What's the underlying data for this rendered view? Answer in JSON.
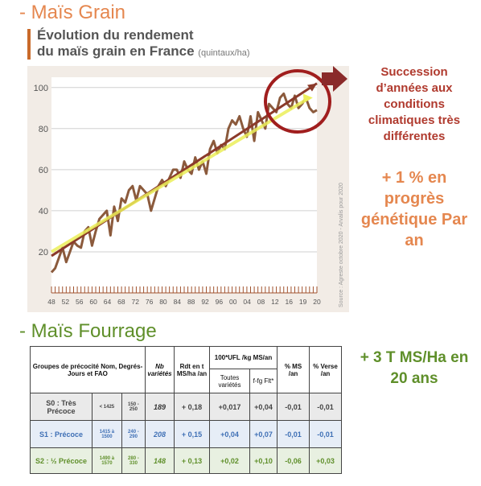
{
  "headings": {
    "grain": "- Maïs Grain",
    "fourrage": "- Maïs Fourrage"
  },
  "chart_title": {
    "line1": "Évolution du rendement",
    "line2": "du maïs grain en France",
    "unit": "(quintaux/ha)"
  },
  "source": "Source : Agreste octobre 2020 - Arvalis pour 2020",
  "annotations": {
    "climate": "Succession d’années aux conditions climatiques très différentes",
    "genetic": "+ 1 % en progrès génétique Par an",
    "fourrage": "+ 3 T MS/Ha en 20 ans"
  },
  "colors": {
    "heading_orange": "#e5874f",
    "heading_green": "#5f8f2a",
    "series_line": "#8b5a3c",
    "trend_dark": "#8b3a2a",
    "trend_light": "#ecef5a",
    "circle": "#a01e1e",
    "arrow": "#8a2a2a",
    "chart_bg": "#f2ece6",
    "blue_row": "#3e6fb5"
  },
  "chart_data": {
    "type": "line",
    "title": "Évolution du rendement du maïs grain en France",
    "ylabel": "(quintaux/ha)",
    "xlabel": "",
    "xlim": [
      1948,
      2020
    ],
    "ylim": [
      0,
      105
    ],
    "yticks": [
      0,
      20,
      40,
      60,
      80,
      100
    ],
    "ytick_labels": [
      "",
      "20",
      "40",
      "60",
      "80",
      "100"
    ],
    "xtick_labels": [
      "48",
      "52",
      "56",
      "60",
      "64",
      "68",
      "72",
      "76",
      "80",
      "84",
      "88",
      "92",
      "96",
      "00",
      "04",
      "08",
      "12",
      "16",
      "19",
      "20"
    ],
    "grid": true,
    "series": [
      {
        "x": [
          1948,
          1949,
          1950,
          1951,
          1952,
          1953,
          1954,
          1955,
          1956,
          1957,
          1958,
          1959,
          1960,
          1961,
          1962,
          1963,
          1964,
          1965,
          1966,
          1967,
          1968,
          1969,
          1970,
          1971,
          1972,
          1973,
          1974,
          1975,
          1976,
          1977,
          1978,
          1979,
          1980,
          1981,
          1982,
          1983,
          1984,
          1985,
          1986,
          1987,
          1988,
          1989,
          1990,
          1991,
          1992,
          1993,
          1994,
          1995,
          1996,
          1997,
          1998,
          1999,
          2000,
          2001,
          2002,
          2003,
          2004,
          2005,
          2006,
          2007,
          2008,
          2009,
          2010,
          2011,
          2012,
          2013,
          2014,
          2015,
          2016,
          2017,
          2018,
          2019,
          2020
        ],
        "values": [
          10,
          12,
          17,
          22,
          15,
          20,
          25,
          23,
          22,
          30,
          32,
          23,
          30,
          36,
          38,
          40,
          28,
          42,
          35,
          46,
          44,
          50,
          52,
          45,
          52,
          50,
          48,
          40,
          46,
          52,
          55,
          52,
          56,
          60,
          60,
          56,
          64,
          60,
          58,
          66,
          60,
          64,
          58,
          70,
          74,
          68,
          72,
          70,
          80,
          84,
          82,
          86,
          80,
          76,
          86,
          74,
          88,
          84,
          80,
          92,
          90,
          88,
          95,
          97,
          92,
          90,
          96,
          90,
          92,
          95,
          90,
          88,
          89
        ]
      }
    ],
    "trends": [
      {
        "name": "trend_dark",
        "x": [
          1948,
          2020
        ],
        "values": [
          18,
          102
        ]
      },
      {
        "name": "trend_light",
        "x": [
          1948,
          2018
        ],
        "values": [
          20,
          95
        ]
      }
    ]
  },
  "table": {
    "headers": {
      "groupes": "Groupes de précocité Nom, Degrés-Jours et FAO",
      "nb": "Nb variétés",
      "rdt": "Rdt en t MS/ha /an",
      "ufl": "100*UFL /kg MS/an",
      "toutes": "Toutes variétés",
      "ffg": "f-fg Flt*",
      "ms": "% MS /an",
      "verse": "% Verse /an"
    },
    "rows": [
      {
        "name": "S0 : Très Précoce",
        "dj": "< 1425",
        "fao": "150 - 250",
        "nb": "189",
        "rdt": "+ 0,18",
        "toutes": "+0,017",
        "ffg": "+0,04",
        "ms": "-0,01",
        "verse": "-0,01"
      },
      {
        "name": "S1 : Précoce",
        "dj": "1415 à 1500",
        "fao": "240 - 290",
        "nb": "208",
        "rdt": "+ 0,15",
        "toutes": "+0,04",
        "ffg": "+0,07",
        "ms": "-0,01",
        "verse": "-0,01"
      },
      {
        "name": "S2 : ½ Précoce",
        "dj": "1490 à 1570",
        "fao": "280 - 330",
        "nb": "148",
        "rdt": "+ 0,13",
        "toutes": "+0,02",
        "ffg": "+0,10",
        "ms": "-0,06",
        "verse": "+0,03"
      }
    ]
  }
}
